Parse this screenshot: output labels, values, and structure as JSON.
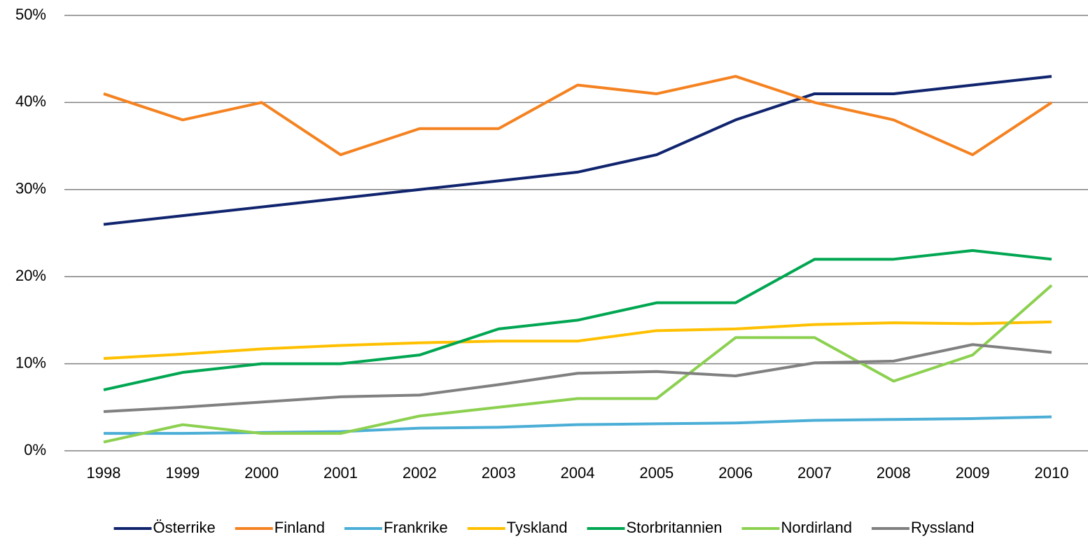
{
  "chart_data": {
    "type": "line",
    "categories": [
      "1998",
      "1999",
      "2000",
      "2001",
      "2002",
      "2003",
      "2004",
      "2005",
      "2006",
      "2007",
      "2008",
      "2009",
      "2010"
    ],
    "ylim": [
      0,
      50
    ],
    "yticks": [
      {
        "value": 0,
        "label": "0%"
      },
      {
        "value": 10,
        "label": "10%"
      },
      {
        "value": 20,
        "label": "20%"
      },
      {
        "value": 30,
        "label": "30%"
      },
      {
        "value": 40,
        "label": "40%"
      },
      {
        "value": 50,
        "label": "50%"
      }
    ],
    "grid": true,
    "legend": "bottom",
    "series": [
      {
        "name": "Österrike",
        "color": "#10246e",
        "values": [
          26,
          27,
          28,
          29,
          30,
          31,
          32,
          34,
          38,
          41,
          41,
          42,
          43
        ]
      },
      {
        "name": "Finland",
        "color": "#f58220",
        "values": [
          41,
          38,
          40,
          34,
          37,
          37,
          42,
          41,
          43,
          40,
          38,
          34,
          40
        ]
      },
      {
        "name": "Frankrike",
        "color": "#4baed6",
        "values": [
          2.0,
          2.0,
          2.1,
          2.2,
          2.6,
          2.7,
          3.0,
          3.1,
          3.2,
          3.5,
          3.6,
          3.7,
          3.9
        ]
      },
      {
        "name": "Tyskland",
        "color": "#ffc000",
        "values": [
          10.6,
          11.1,
          11.7,
          12.1,
          12.4,
          12.6,
          12.6,
          13.8,
          14.0,
          14.5,
          14.7,
          14.6,
          14.8
        ]
      },
      {
        "name": "Storbritannien",
        "color": "#00a651",
        "values": [
          7,
          9,
          10,
          10,
          11,
          14,
          15,
          17,
          17,
          22,
          22,
          23,
          22
        ]
      },
      {
        "name": "Nordirland",
        "color": "#8cd050",
        "values": [
          1,
          3,
          2,
          2,
          4,
          5,
          6,
          6,
          13,
          13,
          8,
          11,
          19
        ]
      },
      {
        "name": "Ryssland",
        "color": "#808080",
        "values": [
          4.5,
          5.0,
          5.6,
          6.2,
          6.4,
          7.6,
          8.9,
          9.1,
          8.6,
          10.1,
          10.3,
          12.2,
          11.3
        ]
      }
    ]
  }
}
